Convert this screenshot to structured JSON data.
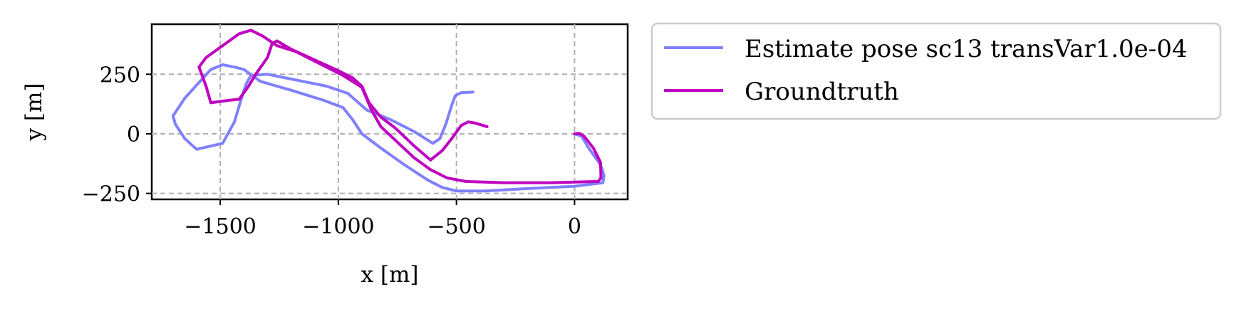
{
  "chart_data": {
    "type": "line",
    "title": "",
    "xlabel": "x [m]",
    "ylabel": "y [m]",
    "xlim": [
      -1790,
      225
    ],
    "ylim": [
      -275,
      460
    ],
    "x_ticks": [
      -1500,
      -1000,
      -500,
      0
    ],
    "x_tick_labels": [
      "−1500",
      "−1000",
      "−500",
      "0"
    ],
    "y_ticks": [
      -250,
      0,
      250
    ],
    "y_tick_labels": [
      "−250",
      "0",
      "250"
    ],
    "grid": true,
    "legend_placement": "outside-right",
    "series": [
      {
        "name": "Estimate pose sc13 transVar1.0e-04",
        "color": "#8080ff",
        "points": [
          [
            -430,
            175
          ],
          [
            -480,
            173
          ],
          [
            -505,
            160
          ],
          [
            -520,
            120
          ],
          [
            -545,
            40
          ],
          [
            -570,
            -20
          ],
          [
            -600,
            -40
          ],
          [
            -680,
            10
          ],
          [
            -780,
            60
          ],
          [
            -880,
            100
          ],
          [
            -960,
            170
          ],
          [
            -1050,
            200
          ],
          [
            -1150,
            220
          ],
          [
            -1300,
            250
          ],
          [
            -1370,
            245
          ],
          [
            -1390,
            210
          ],
          [
            -1410,
            150
          ],
          [
            -1440,
            50
          ],
          [
            -1490,
            -40
          ],
          [
            -1600,
            -65
          ],
          [
            -1650,
            -20
          ],
          [
            -1690,
            40
          ],
          [
            -1700,
            75
          ],
          [
            -1650,
            150
          ],
          [
            -1540,
            270
          ],
          [
            -1490,
            290
          ],
          [
            -1440,
            280
          ],
          [
            -1400,
            270
          ],
          [
            -1330,
            220
          ],
          [
            -1190,
            180
          ],
          [
            -1060,
            140
          ],
          [
            -980,
            110
          ],
          [
            -940,
            60
          ],
          [
            -900,
            0
          ],
          [
            -820,
            -60
          ],
          [
            -720,
            -130
          ],
          [
            -620,
            -195
          ],
          [
            -560,
            -225
          ],
          [
            -500,
            -240
          ],
          [
            -380,
            -240
          ],
          [
            -200,
            -230
          ],
          [
            0,
            -220
          ],
          [
            120,
            -205
          ],
          [
            125,
            -175
          ],
          [
            110,
            -130
          ],
          [
            60,
            -60
          ],
          [
            30,
            -10
          ],
          [
            0,
            0
          ]
        ]
      },
      {
        "name": "Groundtruth",
        "color": "#bf00bf",
        "points": [
          [
            -370,
            30
          ],
          [
            -420,
            45
          ],
          [
            -450,
            50
          ],
          [
            -480,
            35
          ],
          [
            -520,
            -20
          ],
          [
            -560,
            -70
          ],
          [
            -610,
            -110
          ],
          [
            -680,
            -50
          ],
          [
            -760,
            25
          ],
          [
            -820,
            70
          ],
          [
            -870,
            130
          ],
          [
            -900,
            200
          ],
          [
            -940,
            235
          ],
          [
            -1000,
            265
          ],
          [
            -1100,
            310
          ],
          [
            -1200,
            355
          ],
          [
            -1260,
            390
          ],
          [
            -1280,
            380
          ],
          [
            -1300,
            320
          ],
          [
            -1350,
            250
          ],
          [
            -1380,
            200
          ],
          [
            -1420,
            145
          ],
          [
            -1470,
            140
          ],
          [
            -1540,
            130
          ],
          [
            -1560,
            200
          ],
          [
            -1590,
            280
          ],
          [
            -1560,
            320
          ],
          [
            -1490,
            370
          ],
          [
            -1420,
            420
          ],
          [
            -1370,
            435
          ],
          [
            -1320,
            410
          ],
          [
            -1260,
            370
          ],
          [
            -1180,
            345
          ],
          [
            -1080,
            295
          ],
          [
            -980,
            245
          ],
          [
            -900,
            195
          ],
          [
            -860,
            100
          ],
          [
            -820,
            30
          ],
          [
            -750,
            -35
          ],
          [
            -680,
            -100
          ],
          [
            -610,
            -150
          ],
          [
            -540,
            -185
          ],
          [
            -460,
            -200
          ],
          [
            -300,
            -205
          ],
          [
            -100,
            -205
          ],
          [
            100,
            -200
          ],
          [
            112,
            -185
          ],
          [
            110,
            -120
          ],
          [
            80,
            -60
          ],
          [
            40,
            -10
          ],
          [
            20,
            2
          ],
          [
            0,
            0
          ]
        ]
      }
    ]
  }
}
